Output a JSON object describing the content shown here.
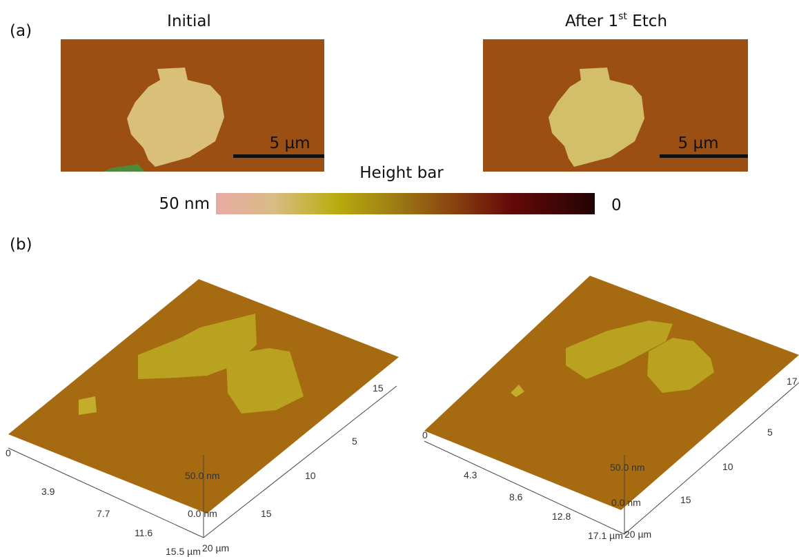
{
  "panel_a": {
    "label": "(a)",
    "images": [
      {
        "title": "Initial",
        "scale_bar": "5 µm"
      },
      {
        "title_parts": [
          "After 1",
          "st",
          " Etch"
        ],
        "scale_bar": "5 µm"
      }
    ],
    "colorbar": {
      "title": "Height bar",
      "max_label": "50 nm",
      "min_label": "0"
    }
  },
  "panel_b": {
    "label": "(b)",
    "plots": [
      {
        "x_ticks": [
          "0",
          "3.9",
          "7.7",
          "11.6",
          "15.5 µm"
        ],
        "y_ticks": [
          "20 µm",
          "15",
          "10",
          "5",
          "15"
        ],
        "z_ticks": [
          "50.0 nm",
          "0.0 nm"
        ]
      },
      {
        "x_ticks": [
          "0",
          "4.3",
          "8.6",
          "12.8",
          "17.1 µm"
        ],
        "y_ticks": [
          "20 µm",
          "15",
          "10",
          "5",
          "17"
        ],
        "z_ticks": [
          "50.0 nm",
          "0.0 nm"
        ]
      }
    ]
  }
}
